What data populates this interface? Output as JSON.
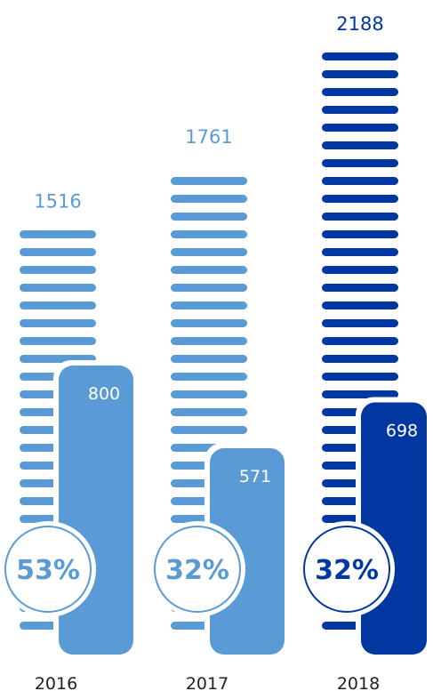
{
  "chart_data": {
    "type": "bar",
    "categories": [
      "2016",
      "2017",
      "2018"
    ],
    "series": [
      {
        "values": [
          1516,
          1761,
          2188
        ]
      },
      {
        "values": [
          800,
          571,
          698
        ]
      }
    ],
    "percentages": [
      "53%",
      "32%",
      "32%"
    ],
    "total_labels": [
      "1516",
      "1761",
      "2188"
    ],
    "sub_labels": [
      "800",
      "571",
      "698"
    ],
    "colors": [
      "#5b9bd5",
      "#5b9bd5",
      "#0037a0"
    ],
    "ylim": [
      0,
      2188
    ]
  }
}
